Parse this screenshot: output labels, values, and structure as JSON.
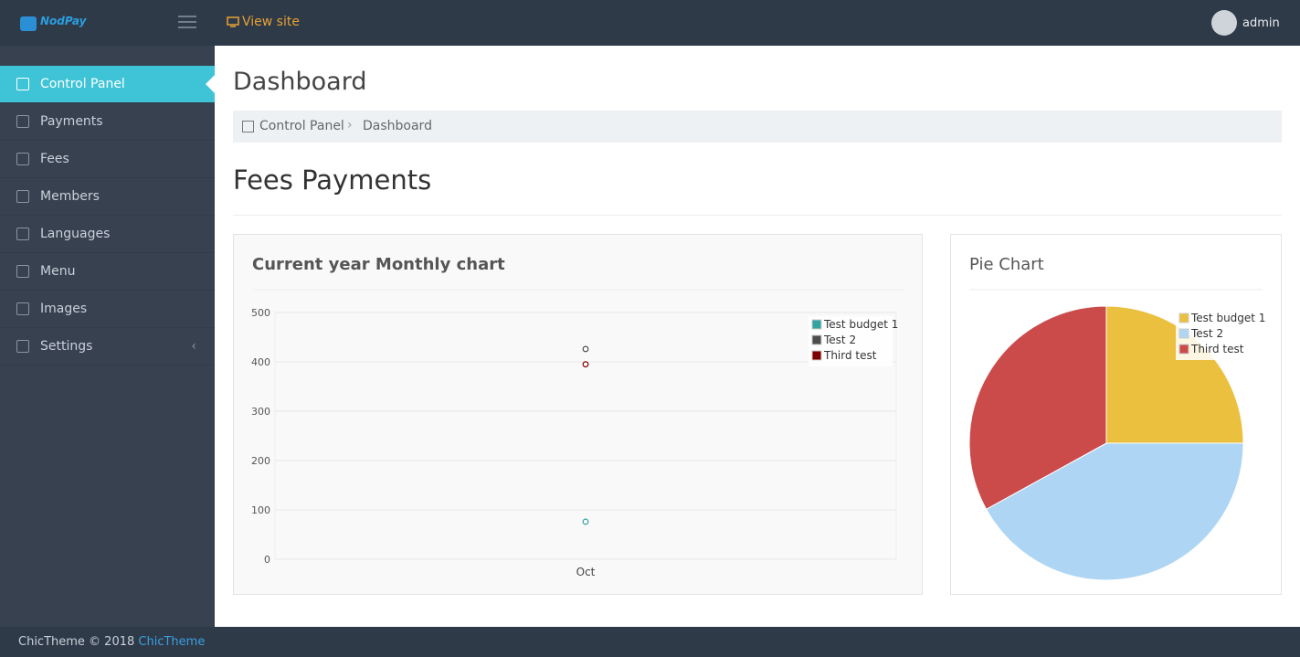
{
  "header": {
    "brand": "NodPay",
    "view_site": "View site",
    "user": "admin"
  },
  "sidebar": {
    "items": [
      "Control Panel",
      "Payments",
      "Fees",
      "Members",
      "Languages",
      "Menu",
      "Images",
      "Settings"
    ]
  },
  "page": {
    "title": "Dashboard",
    "breadcrumb": [
      "Control Panel",
      "Dashboard"
    ],
    "section_title": "Fees Payments"
  },
  "chart_data": [
    {
      "type": "scatter",
      "title": "Current year Monthly chart",
      "categories": [
        "Oct"
      ],
      "series": [
        {
          "name": "Test budget 1",
          "color": "#35a3a0",
          "values": [
            76
          ]
        },
        {
          "name": "Test 2",
          "color": "#4d4d4d",
          "values": [
            426
          ]
        },
        {
          "name": "Third test",
          "color": "#7f0000",
          "values": [
            395
          ]
        }
      ],
      "ylim": [
        0,
        500
      ],
      "yticks": [
        0,
        100,
        200,
        300,
        400,
        500
      ],
      "grid": true,
      "legend": "top-right"
    },
    {
      "type": "pie",
      "title": "Pie Chart",
      "categories": [
        "Test budget 1",
        "Test 2",
        "Third test"
      ],
      "values": [
        25,
        42,
        33
      ],
      "colors": [
        "#ebc03f",
        "#aed6f4",
        "#cb4b4b"
      ],
      "legend": "top-right"
    }
  ],
  "footer": {
    "text": "ChicTheme © 2018",
    "link": "ChicTheme"
  }
}
